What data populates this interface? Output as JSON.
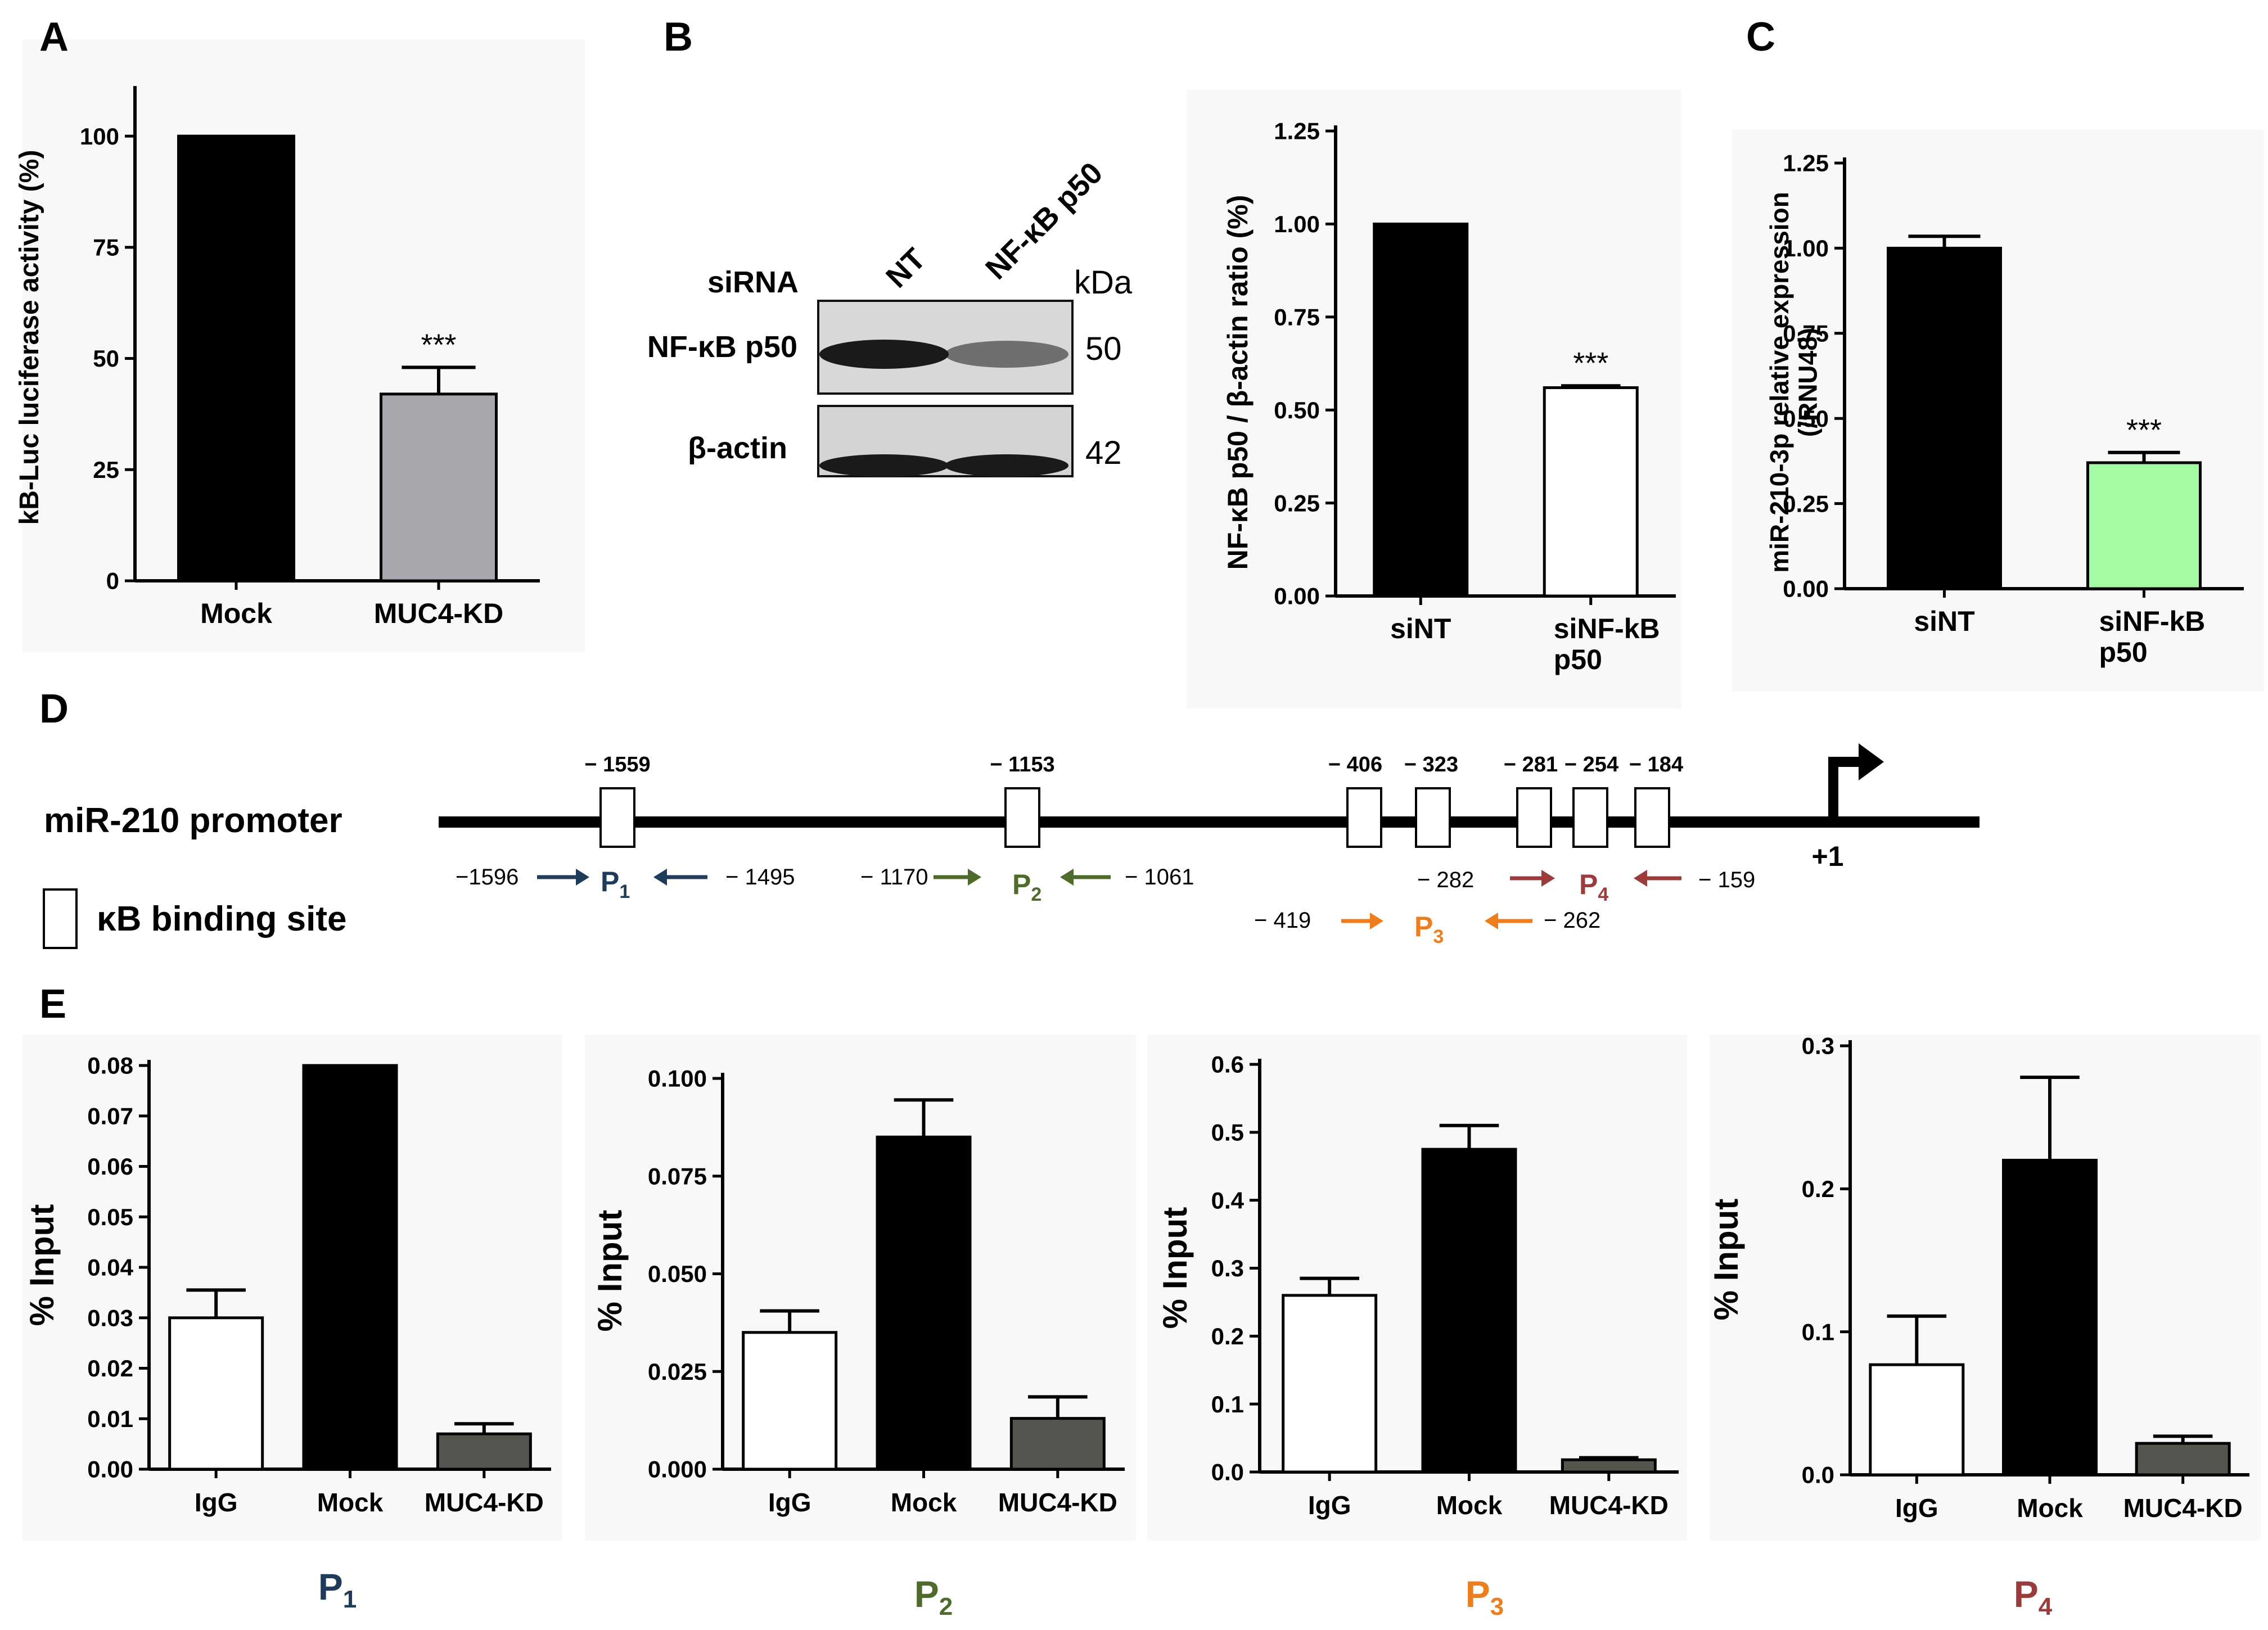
{
  "panel_letters": {
    "a": "A",
    "b": "B",
    "c": "C",
    "d": "D",
    "e": "E"
  },
  "colors": {
    "black": "#000000",
    "gray": "#a6a6ad",
    "dark_gray": "#555550",
    "white": "#ffffff",
    "light_green": "#a3fba3",
    "p1_color": "#1f3b5a",
    "p2_color": "#4e6b2b",
    "p3_color": "#ee7d1e",
    "p4_color": "#9b3b3b",
    "backdrop": "#f8f8f8"
  },
  "chart_data": [
    {
      "id": "A",
      "type": "bar",
      "ylabel": "kB-Luc luciferase activity (%)",
      "categories": [
        "Mock",
        "MUC4-KD"
      ],
      "values": [
        100,
        42
      ],
      "errors": [
        0,
        6
      ],
      "ylim": [
        0,
        110
      ],
      "yticks": [
        "0",
        "25",
        "50",
        "75",
        "100"
      ],
      "bar_colors": [
        "#000000",
        "#a6a6ad"
      ],
      "significance": [
        "",
        "***"
      ]
    },
    {
      "id": "B",
      "type": "bar",
      "ylabel": "NF-κB p50 / β-actin ratio (%)",
      "categories": [
        "siNT",
        "siNF-kB p50"
      ],
      "values": [
        1.0,
        0.56
      ],
      "errors": [
        0,
        0.005
      ],
      "ylim": [
        0,
        1.25
      ],
      "yticks": [
        "0.00",
        "0.25",
        "0.50",
        "0.75",
        "1.00",
        "1.25"
      ],
      "bar_colors": [
        "#000000",
        "#ffffff"
      ],
      "significance": [
        "",
        "***"
      ]
    },
    {
      "id": "C",
      "type": "bar",
      "ylabel": "miR-210-3p relative expression (/RNU48)",
      "categories": [
        "siNT",
        "siNF-kB p50"
      ],
      "values": [
        1.0,
        0.37
      ],
      "errors": [
        0.035,
        0.03
      ],
      "ylim": [
        0,
        1.25
      ],
      "yticks": [
        "0.00",
        "0.25",
        "0.50",
        "0.75",
        "1.00",
        "1.25"
      ],
      "bar_colors": [
        "#000000",
        "#a3fba3"
      ],
      "significance": [
        "",
        "***"
      ]
    },
    {
      "id": "E-P1",
      "type": "bar",
      "ylabel": "% Input",
      "title": "P1",
      "categories": [
        "IgG",
        "Mock",
        "MUC4-KD"
      ],
      "values": [
        0.03,
        0.08,
        0.007
      ],
      "errors": [
        0.0055,
        0,
        0.002
      ],
      "ylim": [
        0,
        0.08
      ],
      "yticks": [
        "0.00",
        "0.01",
        "0.02",
        "0.03",
        "0.04",
        "0.05",
        "0.06",
        "0.07",
        "0.08"
      ],
      "bar_colors": [
        "#ffffff",
        "#000000",
        "#555550"
      ]
    },
    {
      "id": "E-P2",
      "type": "bar",
      "ylabel": "% Input",
      "title": "P2",
      "categories": [
        "IgG",
        "Mock",
        "MUC4-KD"
      ],
      "values": [
        0.035,
        0.085,
        0.013
      ],
      "errors": [
        0.0055,
        0.0095,
        0.0055
      ],
      "ylim": [
        0,
        0.1
      ],
      "yticks": [
        "0.000",
        "0.025",
        "0.050",
        "0.075",
        "0.100"
      ],
      "bar_colors": [
        "#ffffff",
        "#000000",
        "#555550"
      ]
    },
    {
      "id": "E-P3",
      "type": "bar",
      "ylabel": "% Input",
      "title": "P3",
      "categories": [
        "IgG",
        "Mock",
        "MUC4-KD"
      ],
      "values": [
        0.26,
        0.475,
        0.018
      ],
      "errors": [
        0.025,
        0.035,
        0.003
      ],
      "ylim": [
        0,
        0.6
      ],
      "yticks": [
        "0.0",
        "0.1",
        "0.2",
        "0.3",
        "0.4",
        "0.5",
        "0.6"
      ],
      "bar_colors": [
        "#ffffff",
        "#000000",
        "#555550"
      ]
    },
    {
      "id": "E-P4",
      "type": "bar",
      "ylabel": "% Input",
      "title": "P4",
      "categories": [
        "IgG",
        "Mock",
        "MUC4-KD"
      ],
      "values": [
        0.077,
        0.22,
        0.022
      ],
      "errors": [
        0.034,
        0.058,
        0.005
      ],
      "ylim": [
        0,
        0.3
      ],
      "yticks": [
        "0.0",
        "0.1",
        "0.2",
        "0.3"
      ],
      "bar_colors": [
        "#ffffff",
        "#000000",
        "#555550"
      ]
    }
  ],
  "western_blot": {
    "siRNA_label": "siRNA",
    "lane_labels": [
      "NT",
      "NF-κB p50"
    ],
    "kda_label": "kDa",
    "rows": [
      {
        "protein": "NF-κB p50",
        "kda": "50",
        "band_intensity": [
          1.0,
          0.55
        ]
      },
      {
        "protein": "β-actin",
        "kda": "42",
        "band_intensity": [
          1.0,
          1.0
        ]
      }
    ]
  },
  "promoter": {
    "label": "miR-210 promoter",
    "tss_label": "+1",
    "binding_site_legend": "κB binding site",
    "sites": [
      "− 1559",
      "− 1153",
      "− 406",
      "− 323",
      "− 281",
      "− 254",
      "− 184"
    ],
    "primers": [
      {
        "name": "P",
        "sub": "1",
        "left": "−1596",
        "right": "− 1495"
      },
      {
        "name": "P",
        "sub": "2",
        "left": "− 1170",
        "right": "− 1061"
      },
      {
        "name": "P",
        "sub": "3",
        "left": "− 419",
        "right": "− 262"
      },
      {
        "name": "P",
        "sub": "4",
        "left": "− 282",
        "right": "− 159"
      }
    ]
  }
}
